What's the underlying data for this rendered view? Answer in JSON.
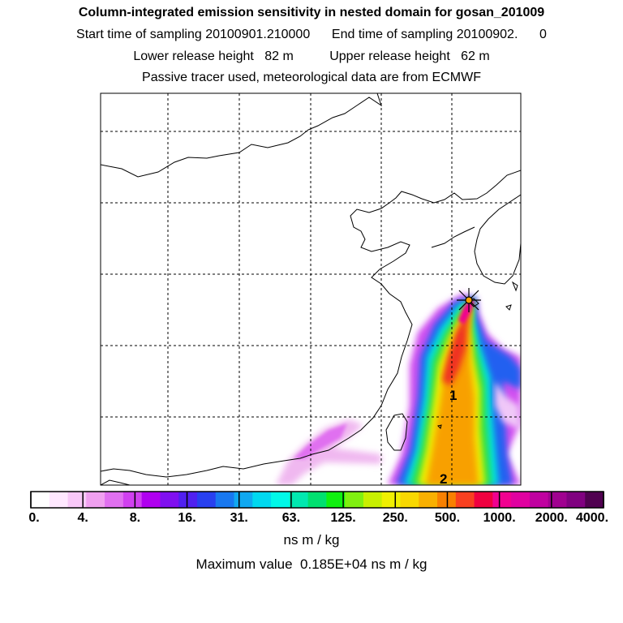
{
  "title": {
    "line1": "Column-integrated emission sensitivity in nested domain for gosan_201009",
    "line2": "Start time of sampling 20100901.210000      End time of sampling 20100902.      0",
    "line3": "Lower release height   82 m          Upper release height   62 m",
    "line4": "Passive tracer used, meteorological data are from ECMWF"
  },
  "chart_data": {
    "type": "heatmap",
    "title": "Column-integrated emission sensitivity in nested domain for gosan_201009",
    "colorbar": {
      "tick_labels": [
        "0.",
        "4.",
        "8.",
        "16.",
        "31.",
        "63.",
        "125.",
        "250.",
        "500.",
        "1000.",
        "2000.",
        "4000."
      ],
      "colors": [
        "#ffffff",
        "#ffe8ff",
        "#f8c8f8",
        "#f0a0f0",
        "#e070f0",
        "#d040f0",
        "#b000f0",
        "#8010f0",
        "#5020f0",
        "#2840f0",
        "#1878f0",
        "#10a8f0",
        "#00d8f0",
        "#00f8e8",
        "#00e8b0",
        "#00e070",
        "#10f010",
        "#80f010",
        "#c8f000",
        "#f0f000",
        "#f8d800",
        "#f8b000",
        "#f88000",
        "#f84020",
        "#f00040",
        "#f00090",
        "#e000a0",
        "#c000a0",
        "#a00090",
        "#800080",
        "#500050"
      ],
      "unit": "ns m / kg"
    },
    "max_value_text": "Maximum value  0.185E+04 ns m / kg",
    "contour_labels": [
      "1",
      "2"
    ],
    "receptor": "gosan"
  }
}
